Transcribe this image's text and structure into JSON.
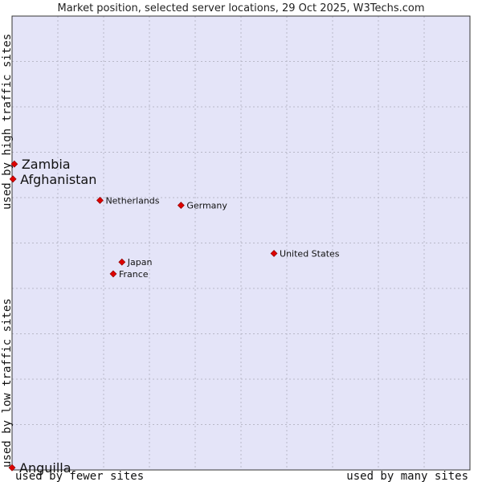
{
  "chart_data": {
    "type": "scatter",
    "title": "Market position, selected server locations, 29 Oct 2025, W3Techs.com",
    "xlabel_low": "used by fewer sites",
    "xlabel_high": "used by many sites",
    "ylabel_low": "used by low traffic sites",
    "ylabel_high": "used by high traffic sites",
    "xlim": [
      0,
      100
    ],
    "ylim": [
      0,
      100
    ],
    "grid": true,
    "colors": {
      "plot_background": "#e4e4f8",
      "grid": "#b8b8c8",
      "border": "#333333",
      "marker": "#dd0000"
    },
    "points": [
      {
        "label": "Zambia",
        "x": 0.5,
        "y": 67.4,
        "emphasized": true
      },
      {
        "label": "Afghanistan",
        "x": 0.2,
        "y": 64.1,
        "emphasized": true
      },
      {
        "label": "Netherlands",
        "x": 19.2,
        "y": 59.4,
        "emphasized": false
      },
      {
        "label": "Germany",
        "x": 36.9,
        "y": 58.3,
        "emphasized": false
      },
      {
        "label": "United States",
        "x": 57.2,
        "y": 47.7,
        "emphasized": false
      },
      {
        "label": "Japan",
        "x": 24.0,
        "y": 45.8,
        "emphasized": false
      },
      {
        "label": "France",
        "x": 22.1,
        "y": 43.2,
        "emphasized": false
      },
      {
        "label": "Anguilla",
        "x": 0.0,
        "y": 0.5,
        "emphasized": true
      }
    ]
  }
}
